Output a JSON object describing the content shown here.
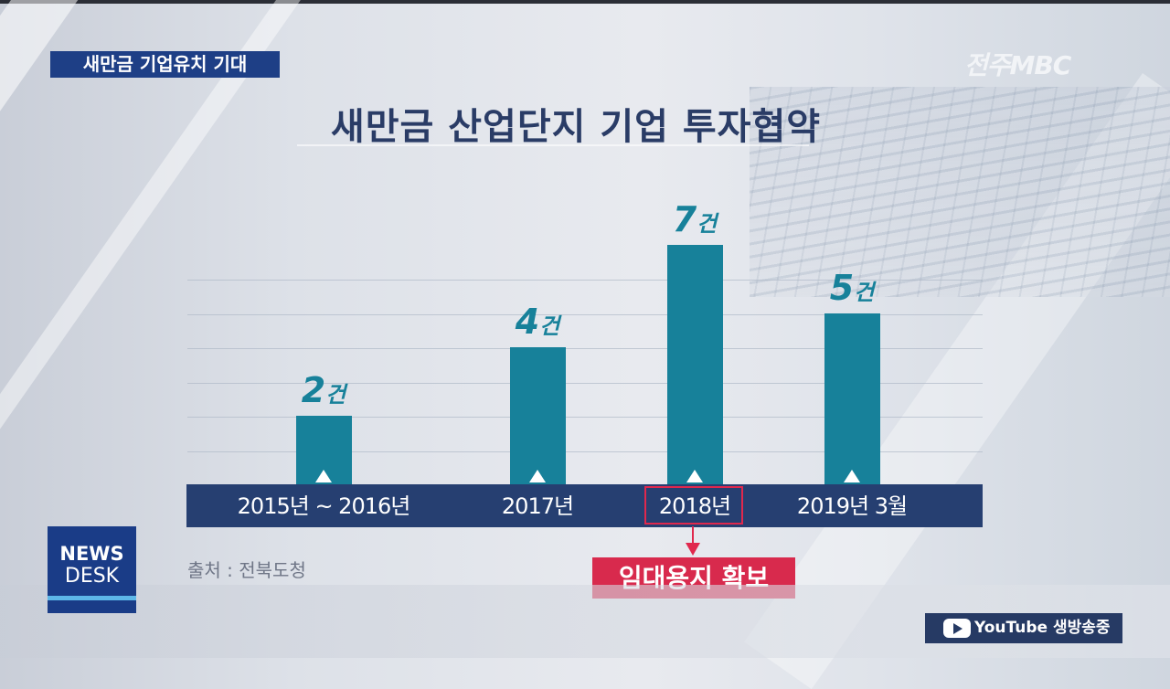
{
  "header": {
    "tag": "새만금 기업유치 기대",
    "broadcaster": "전주MBC"
  },
  "chart_data": {
    "type": "bar",
    "title": "새만금 산업단지 기업 투자협약",
    "categories": [
      "2015년 ~ 2016년",
      "2017년",
      "2018년",
      "2019년 3월"
    ],
    "values": [
      2,
      4,
      7,
      5
    ],
    "unit": "건",
    "xlabel": "",
    "ylabel": "",
    "ylim": [
      0,
      7
    ],
    "grid": true,
    "bar_color": "#17819a",
    "highlight": {
      "category": "2018년",
      "annotation": "임대용지 확보",
      "color": "#d82a4d"
    },
    "source": "출처 : 전북도청"
  },
  "logos": {
    "newsdesk_line1": "NEWS",
    "newsdesk_line2": "DESK",
    "youtube_label": "YouTube 생방송중"
  },
  "colors": {
    "axis_band": "#263f71",
    "title": "#2a3c66",
    "tag_bg": "#1e3f86"
  }
}
